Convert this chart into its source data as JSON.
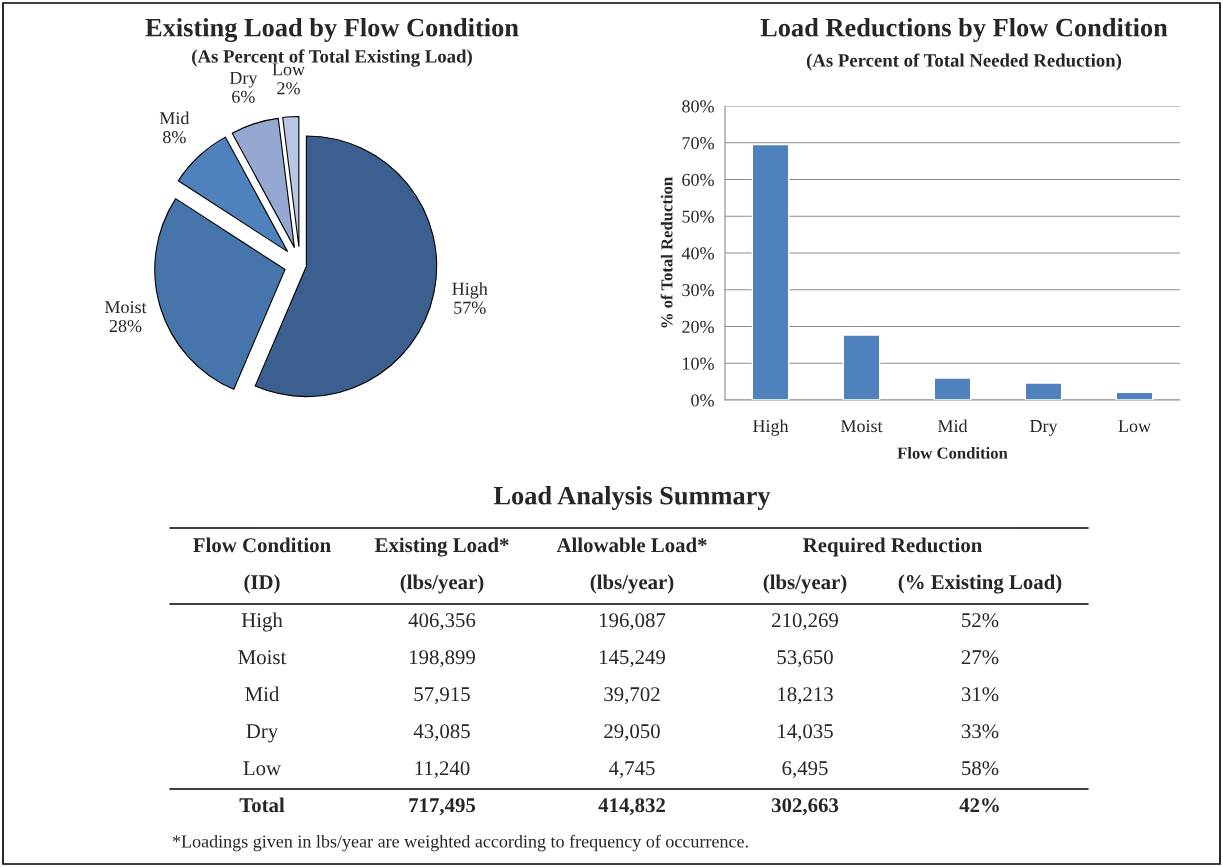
{
  "chart_data": [
    {
      "type": "pie",
      "title": "Existing Load by Flow Condition",
      "subtitle": "(As Percent of Total Existing Load)",
      "categories": [
        "High",
        "Moist",
        "Mid",
        "Dry",
        "Low"
      ],
      "values": [
        57,
        28,
        8,
        6,
        2
      ],
      "value_labels": [
        "57%",
        "28%",
        "8%",
        "6%",
        "2%"
      ],
      "colors": [
        "#3b5f8e",
        "#4675ab",
        "#4f81bd",
        "#94a8d1",
        "#b8c6e3"
      ]
    },
    {
      "type": "bar",
      "title": "Load Reductions by Flow Condition",
      "subtitle": "(As Percent of Total Needed Reduction)",
      "xlabel": "Flow Condition",
      "ylabel": "% of Total Reduction",
      "categories": [
        "High",
        "Moist",
        "Mid",
        "Dry",
        "Low"
      ],
      "values": [
        69.5,
        17.7,
        6.0,
        4.6,
        2.1
      ],
      "color": "#4f81bd",
      "ylim": [
        0,
        80
      ],
      "yticks": [
        {
          "value": 0,
          "label": "0%"
        },
        {
          "value": 10,
          "label": "10%"
        },
        {
          "value": 20,
          "label": "20%"
        },
        {
          "value": 30,
          "label": "30%"
        },
        {
          "value": 40,
          "label": "40%"
        },
        {
          "value": 50,
          "label": "50%"
        },
        {
          "value": 60,
          "label": "60%"
        },
        {
          "value": 70,
          "label": "70%"
        },
        {
          "value": 80,
          "label": "80%"
        }
      ],
      "grid": "y",
      "legend": false
    },
    {
      "type": "other",
      "title": "Load Analysis Summary",
      "annotations": [
        "Flow Condition",
        "Existing Load*",
        "Allowable Load*",
        "Required Reduction",
        "(ID)",
        "(lbs/year)",
        "(lbs/year)",
        "(lbs/year)",
        "(% Existing Load)",
        "High",
        "406,356",
        "196,087",
        "210,269",
        "52%",
        "Moist",
        "198,899",
        "145,249",
        "53,650",
        "27%",
        "Mid",
        "57,915",
        "39,702",
        "18,213",
        "31%",
        "Dry",
        "43,085",
        "29,050",
        "14,035",
        "33%",
        "Low",
        "11,240",
        "4,745",
        "6,495",
        "58%",
        "Total",
        "717,495",
        "414,832",
        "302,663",
        "42%",
        "*Loadings given in lbs/year are weighted according to frequency of occurrence."
      ]
    }
  ]
}
